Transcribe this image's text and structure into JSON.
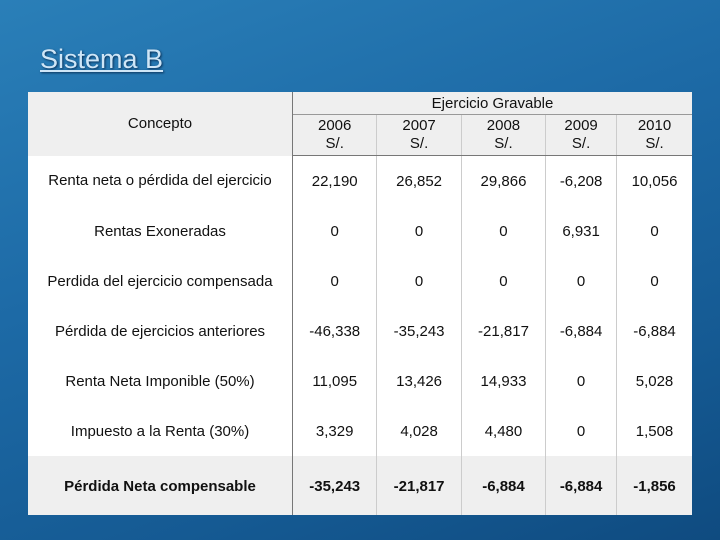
{
  "title": "Sistema B",
  "table": {
    "header": {
      "concept": "Concepto",
      "group": "Ejercicio Gravable",
      "years": [
        "2006",
        "2007",
        "2008",
        "2009",
        "2010"
      ],
      "units": [
        "S/.",
        "S/.",
        "S/.",
        "S/.",
        "S/."
      ]
    },
    "rows": [
      {
        "label": "Renta neta o pérdida del ejercicio",
        "values": [
          "22,190",
          "26,852",
          "29,866",
          "-6,208",
          "10,056"
        ]
      },
      {
        "label": "Rentas Exoneradas",
        "values": [
          "0",
          "0",
          "0",
          "6,931",
          "0"
        ]
      },
      {
        "label": "Perdida del ejercicio compensada",
        "values": [
          "0",
          "0",
          "0",
          "0",
          "0"
        ]
      },
      {
        "label": "Pérdida de ejercicios anteriores",
        "values": [
          "-46,338",
          "-35,243",
          "-21,817",
          "-6,884",
          "-6,884"
        ]
      },
      {
        "label": "Renta Neta Imponible (50%)",
        "values": [
          "11,095",
          "13,426",
          "14,933",
          "0",
          "5,028"
        ]
      },
      {
        "label": "Impuesto a la Renta (30%)",
        "values": [
          "3,329",
          "4,028",
          "4,480",
          "0",
          "1,508"
        ]
      },
      {
        "label": "Pérdida Neta compensable",
        "values": [
          "-35,243",
          "-21,817",
          "-6,884",
          "-6,884",
          "-1,856"
        ]
      }
    ]
  }
}
